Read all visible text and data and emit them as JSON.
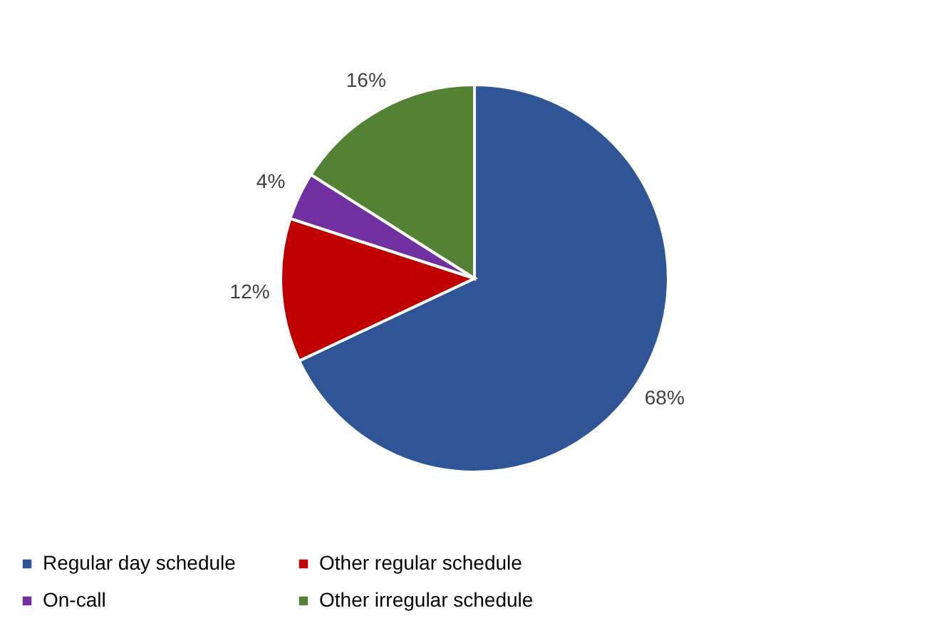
{
  "chart_data": {
    "type": "pie",
    "categories": [
      "Regular day schedule",
      "Other regular schedule",
      "On-call",
      "Other irregular schedule"
    ],
    "values": [
      68,
      12,
      4,
      16
    ],
    "colors": [
      "#2f5597",
      "#c00000",
      "#7030a0",
      "#548235"
    ],
    "value_labels": [
      "68%",
      "12%",
      "4%",
      "16%"
    ],
    "legend": "bottom"
  }
}
